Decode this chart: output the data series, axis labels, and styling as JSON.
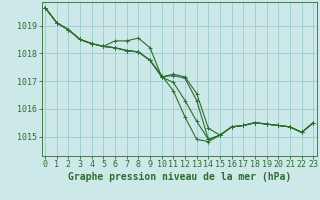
{
  "background_color": "#cce8e8",
  "grid_color": "#99cccc",
  "line_color": "#2d6e2d",
  "xlabel": "Graphe pression niveau de la mer (hPa)",
  "xlabel_fontsize": 7,
  "tick_fontsize": 6,
  "yticks": [
    1015,
    1016,
    1017,
    1018,
    1019
  ],
  "ylim": [
    1014.3,
    1019.85
  ],
  "xlim": [
    -0.3,
    23.3
  ],
  "xticks": [
    0,
    1,
    2,
    3,
    4,
    5,
    6,
    7,
    8,
    9,
    10,
    11,
    12,
    13,
    14,
    15,
    16,
    17,
    18,
    19,
    20,
    21,
    22,
    23
  ],
  "series": [
    [
      1019.65,
      1019.1,
      1018.85,
      1018.5,
      1018.35,
      1018.25,
      1018.45,
      1018.45,
      1018.55,
      1018.2,
      1017.15,
      1017.2,
      1017.1,
      1016.3,
      1014.9,
      1015.05,
      1015.35,
      1015.4,
      1015.5,
      1015.45,
      1015.4,
      1015.35,
      1015.15,
      1015.5
    ],
    [
      1019.65,
      1019.1,
      1018.85,
      1018.5,
      1018.35,
      1018.25,
      1018.2,
      1018.1,
      1018.05,
      1017.75,
      1017.15,
      1017.25,
      1017.15,
      1016.55,
      1015.3,
      1015.05,
      1015.35,
      1015.4,
      1015.5,
      1015.45,
      1015.4,
      1015.35,
      1015.15,
      1015.5
    ],
    [
      1019.65,
      1019.1,
      1018.85,
      1018.5,
      1018.35,
      1018.25,
      1018.2,
      1018.1,
      1018.05,
      1017.75,
      1017.15,
      1016.95,
      1016.3,
      1015.55,
      1014.9,
      1015.05,
      1015.35,
      1015.4,
      1015.5,
      1015.45,
      1015.4,
      1015.35,
      1015.15,
      1015.5
    ],
    [
      1019.65,
      1019.1,
      1018.85,
      1018.5,
      1018.35,
      1018.25,
      1018.2,
      1018.1,
      1018.05,
      1017.75,
      1017.2,
      1016.65,
      1015.7,
      1014.9,
      1014.82,
      1015.05,
      1015.35,
      1015.4,
      1015.5,
      1015.45,
      1015.4,
      1015.35,
      1015.15,
      1015.5
    ]
  ],
  "marker": "+",
  "marker_size": 3,
  "line_width": 0.8
}
